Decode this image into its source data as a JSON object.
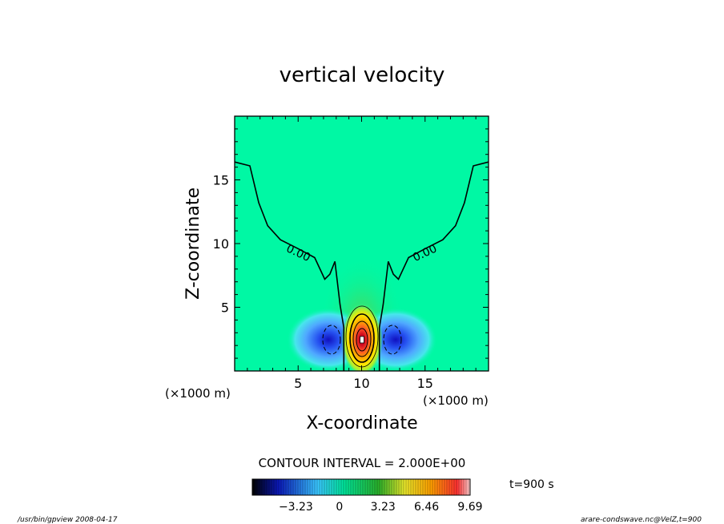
{
  "chart_data": {
    "type": "heatmap",
    "title": "vertical velocity",
    "xlabel": "X-coordinate",
    "ylabel": "Z-coordinate",
    "x_units": "(×1000 m)",
    "y_units": "(×1000 m)",
    "xlim": [
      0,
      20
    ],
    "ylim": [
      0,
      20
    ],
    "xticks": [
      {
        "value": 5,
        "label": "5"
      },
      {
        "value": 10,
        "label": "10"
      },
      {
        "value": 15,
        "label": "15"
      }
    ],
    "yticks": [
      {
        "value": 5,
        "label": "5"
      },
      {
        "value": 10,
        "label": "10"
      },
      {
        "value": 15,
        "label": "15"
      }
    ],
    "zero_contour": {
      "label": "0.00",
      "left": [
        [
          0,
          16.4
        ],
        [
          1.2,
          16.1
        ],
        [
          1.9,
          13.2
        ],
        [
          2.6,
          11.4
        ],
        [
          3.6,
          10.3
        ],
        [
          5.0,
          9.6
        ],
        [
          6.3,
          8.9
        ],
        [
          7.1,
          7.2
        ],
        [
          7.5,
          7.6
        ],
        [
          7.9,
          8.6
        ],
        [
          8.3,
          5.2
        ],
        [
          8.6,
          3.4
        ],
        [
          8.6,
          0
        ]
      ],
      "right": [
        [
          20,
          16.4
        ],
        [
          18.8,
          16.1
        ],
        [
          18.1,
          13.2
        ],
        [
          17.4,
          11.4
        ],
        [
          16.4,
          10.3
        ],
        [
          15.0,
          9.6
        ],
        [
          13.7,
          8.9
        ],
        [
          12.9,
          7.2
        ],
        [
          12.5,
          7.6
        ],
        [
          12.1,
          8.6
        ],
        [
          11.7,
          5.2
        ],
        [
          11.4,
          3.4
        ],
        [
          11.4,
          0
        ]
      ]
    },
    "features": [
      {
        "kind": "updraft",
        "x": 10,
        "z": 2.3,
        "peak": 9.69
      },
      {
        "kind": "downdraft",
        "x": 7.6,
        "z": 2.3,
        "min": -3.23
      },
      {
        "kind": "downdraft",
        "x": 12.4,
        "z": 2.3,
        "min": -3.23
      }
    ],
    "contour_interval_text": "CONTOUR INTERVAL = 2.000E+00",
    "colorbar": {
      "range": [
        -6.46,
        9.69
      ],
      "ticks": [
        {
          "value": -3.23,
          "label": "−3.23"
        },
        {
          "value": 0,
          "label": "0"
        },
        {
          "value": 3.23,
          "label": "3.23"
        },
        {
          "value": 6.46,
          "label": "6.46"
        },
        {
          "value": 9.69,
          "label": "9.69"
        }
      ]
    },
    "time_label": "t=900 s",
    "footer_left": "/usr/bin/gpview  2008-04-17",
    "footer_right": "arare-condswave.nc@VelZ,t=900"
  }
}
